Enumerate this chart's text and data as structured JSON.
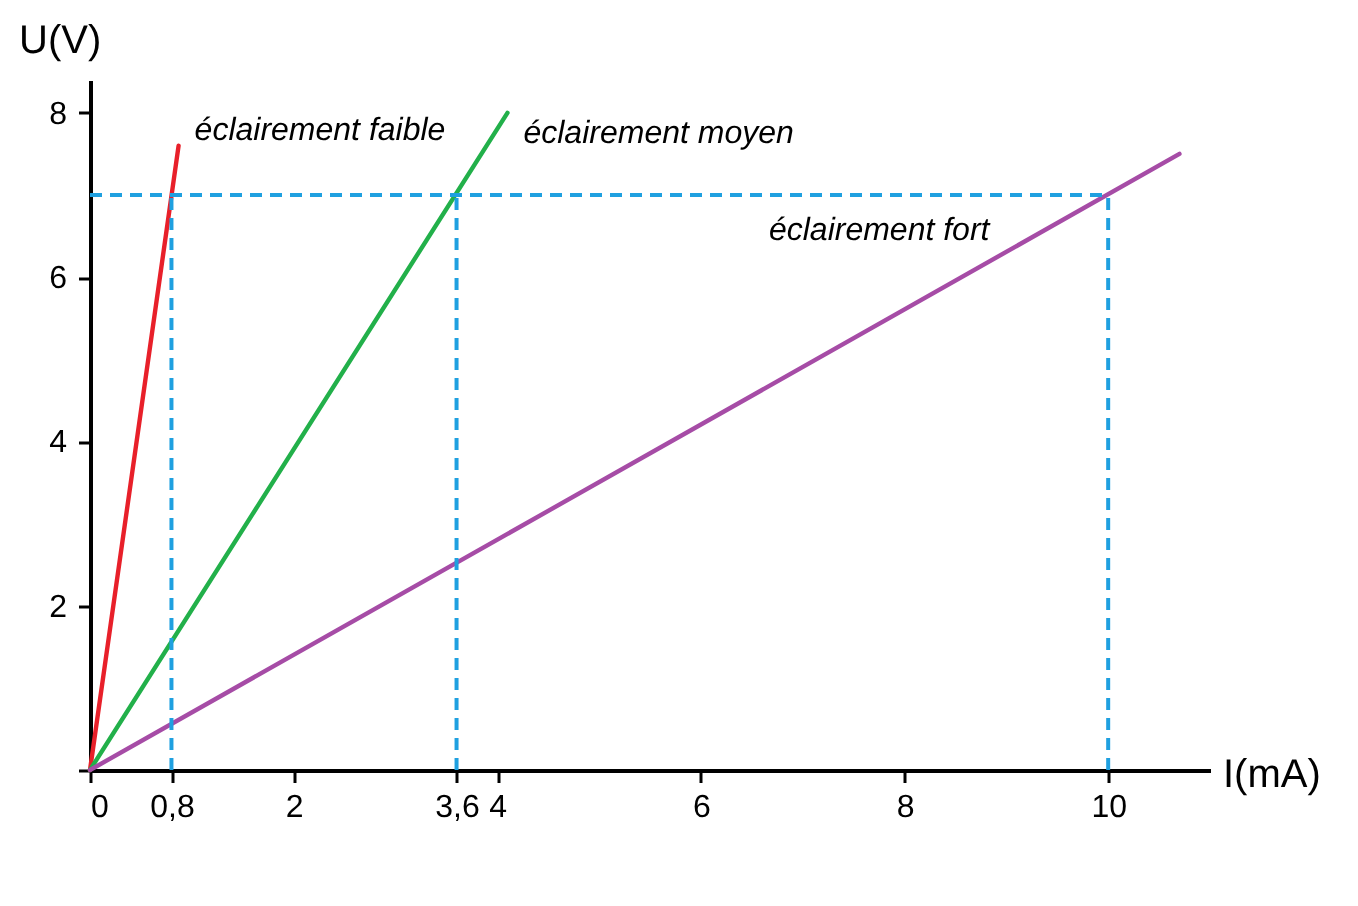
{
  "chart_data": {
    "type": "line",
    "xlabel": "I(mA)",
    "ylabel": "U(V)",
    "series": [
      {
        "name": "éclairement faible",
        "color": "#e8202a",
        "x": [
          0,
          0.87
        ],
        "values": [
          0,
          7.6
        ]
      },
      {
        "name": "éclairement moyen",
        "color": "#22b04a",
        "x": [
          0,
          4.1
        ],
        "values": [
          0,
          8.0
        ]
      },
      {
        "name": "éclairement fort",
        "color": "#a64ca6",
        "x": [
          0,
          10.7
        ],
        "values": [
          0,
          7.5
        ]
      }
    ],
    "xlim": [
      0,
      11
    ],
    "ylim": [
      0,
      8.4
    ],
    "xticks": [
      0,
      {
        "value": 0.8,
        "label": "0,8"
      },
      2,
      {
        "value": 3.6,
        "label": "3,6"
      },
      4,
      6,
      8,
      10
    ],
    "yticks": [
      {
        "value": 0,
        "label": null
      },
      2,
      4,
      6,
      8
    ],
    "ref_lines": [
      {
        "axis": "y",
        "value": 7,
        "color": "#1fa0e0",
        "line_style": "dashed"
      },
      {
        "axis": "x",
        "value": 0.8,
        "color": "#1fa0e0",
        "line_style": "dashed"
      },
      {
        "axis": "x",
        "value": 3.6,
        "color": "#1fa0e0",
        "line_style": "dashed"
      },
      {
        "axis": "x",
        "value": 10,
        "color": "#1fa0e0",
        "line_style": "dashed"
      }
    ],
    "grid": false,
    "legend": false
  }
}
